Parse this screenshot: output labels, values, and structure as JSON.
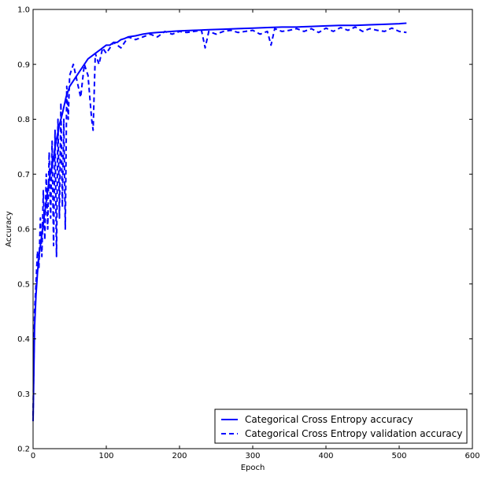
{
  "chart_data": {
    "type": "line",
    "xlabel": "Epoch",
    "ylabel": "Accuracy",
    "xlim": [
      0,
      600
    ],
    "ylim": [
      0.2,
      1.0
    ],
    "xticks": [
      0,
      100,
      200,
      300,
      400,
      500,
      600
    ],
    "yticks": [
      0.2,
      0.3,
      0.4,
      0.5,
      0.6,
      0.7,
      0.8,
      0.9,
      1.0
    ],
    "grid": false,
    "legend_position": "lower-right",
    "line_color": "#0000ff",
    "series": [
      {
        "name": "Categorical Cross Entropy accuracy",
        "style": "solid",
        "x": [
          0,
          2,
          4,
          6,
          8,
          10,
          12,
          15,
          18,
          20,
          22,
          25,
          28,
          30,
          33,
          36,
          40,
          45,
          50,
          55,
          60,
          65,
          70,
          75,
          80,
          85,
          90,
          95,
          100,
          105,
          110,
          115,
          120,
          125,
          130,
          140,
          150,
          160,
          170,
          180,
          190,
          200,
          220,
          240,
          260,
          280,
          300,
          320,
          340,
          360,
          380,
          400,
          420,
          440,
          460,
          480,
          500,
          510
        ],
        "y": [
          0.25,
          0.42,
          0.48,
          0.52,
          0.55,
          0.57,
          0.59,
          0.62,
          0.65,
          0.67,
          0.69,
          0.71,
          0.73,
          0.75,
          0.77,
          0.79,
          0.81,
          0.84,
          0.86,
          0.87,
          0.88,
          0.89,
          0.9,
          0.91,
          0.915,
          0.92,
          0.925,
          0.93,
          0.935,
          0.935,
          0.94,
          0.94,
          0.945,
          0.947,
          0.95,
          0.952,
          0.955,
          0.957,
          0.958,
          0.959,
          0.96,
          0.961,
          0.962,
          0.963,
          0.964,
          0.965,
          0.966,
          0.967,
          0.968,
          0.968,
          0.969,
          0.97,
          0.971,
          0.971,
          0.972,
          0.973,
          0.974,
          0.975
        ]
      },
      {
        "name": "Categorical Cross Entropy validation accuracy",
        "style": "dashed",
        "x": [
          0,
          2,
          4,
          6,
          8,
          10,
          12,
          14,
          16,
          18,
          20,
          22,
          24,
          26,
          28,
          30,
          32,
          34,
          36,
          38,
          40,
          42,
          44,
          46,
          48,
          50,
          55,
          60,
          65,
          70,
          75,
          80,
          82,
          85,
          90,
          95,
          100,
          110,
          120,
          130,
          140,
          150,
          160,
          170,
          180,
          190,
          200,
          210,
          220,
          230,
          235,
          240,
          250,
          260,
          270,
          280,
          290,
          300,
          310,
          320,
          325,
          330,
          340,
          350,
          360,
          370,
          380,
          390,
          400,
          410,
          420,
          430,
          440,
          450,
          460,
          470,
          480,
          490,
          500,
          510
        ],
        "y": [
          0.26,
          0.45,
          0.5,
          0.56,
          0.53,
          0.62,
          0.55,
          0.67,
          0.58,
          0.7,
          0.6,
          0.74,
          0.62,
          0.76,
          0.57,
          0.78,
          0.55,
          0.8,
          0.62,
          0.83,
          0.64,
          0.8,
          0.6,
          0.86,
          0.8,
          0.88,
          0.9,
          0.87,
          0.84,
          0.9,
          0.88,
          0.8,
          0.78,
          0.92,
          0.9,
          0.93,
          0.92,
          0.94,
          0.93,
          0.95,
          0.945,
          0.95,
          0.955,
          0.95,
          0.96,
          0.955,
          0.96,
          0.958,
          0.96,
          0.962,
          0.93,
          0.96,
          0.955,
          0.96,
          0.962,
          0.958,
          0.96,
          0.962,
          0.955,
          0.96,
          0.935,
          0.965,
          0.96,
          0.962,
          0.965,
          0.96,
          0.965,
          0.958,
          0.966,
          0.96,
          0.967,
          0.962,
          0.968,
          0.96,
          0.965,
          0.962,
          0.96,
          0.966,
          0.96,
          0.958
        ]
      }
    ]
  }
}
